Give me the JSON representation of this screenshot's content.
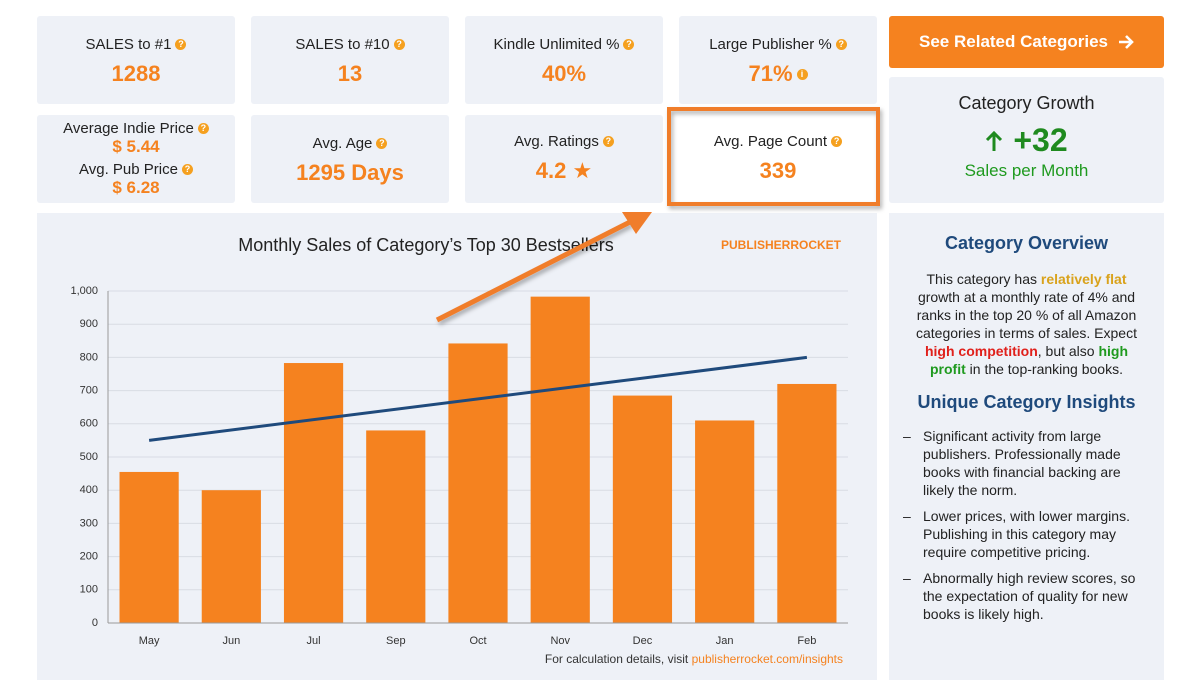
{
  "stats": [
    {
      "label": "SALES to #1",
      "value": "1288"
    },
    {
      "label": "SALES to #10",
      "value": "13"
    },
    {
      "label": "Kindle Unlimited %",
      "value": "40%"
    },
    {
      "label": "Large Publisher %",
      "value": "71%"
    }
  ],
  "price": {
    "indie_label": "Average Indie Price",
    "indie_value": "$ 5.44",
    "pub_label": "Avg. Pub Price",
    "pub_value": "$ 6.28"
  },
  "stats2": [
    {
      "label": "Avg. Age",
      "value": "1295 Days"
    },
    {
      "label": "Avg. Ratings",
      "value": "4.2 ★"
    },
    {
      "label": "Avg. Page Count",
      "value": "339"
    }
  ],
  "button": "See Related Categories",
  "growth": {
    "title": "Category Growth",
    "value": "+32",
    "unit": "Sales per Month"
  },
  "chart_data": {
    "type": "bar",
    "title": "Monthly Sales of Category’s Top 30 Bestsellers",
    "brand": "PUBLISHERROCKET",
    "categories": [
      "May",
      "Jun",
      "Jul",
      "Sep",
      "Oct",
      "Nov",
      "Dec",
      "Jan",
      "Feb"
    ],
    "values": [
      455,
      400,
      783,
      580,
      842,
      983,
      685,
      610,
      720
    ],
    "color": "#f5821f",
    "trend": [
      550,
      800
    ],
    "trend_color": "#1f4a7c",
    "ylim": [
      0,
      1000
    ],
    "yticks": [
      0,
      100,
      200,
      300,
      400,
      500,
      600,
      700,
      800,
      900,
      {
        "value": 1000,
        "label": "1,000"
      }
    ],
    "grid": true,
    "footnote": "For calculation details, visit",
    "footnote_link": "publisherrocket.com/insights"
  },
  "overview": {
    "title": "Category Overview",
    "parts": [
      {
        "text": "This category has "
      },
      {
        "text": "relatively flat",
        "color": "#d9a21b"
      },
      {
        "text": " growth at a monthly rate of 4% and ranks in the top 20 % of all Amazon categories in terms of sales. Expect "
      },
      {
        "text": "high competition",
        "color": "#e0201b"
      },
      {
        "text": ", but also "
      },
      {
        "text": "high profit",
        "color": "#1f9a1f"
      },
      {
        "text": " in the top-ranking books."
      }
    ]
  },
  "insights": {
    "title": "Unique Category Insights",
    "items": [
      "Significant activity from large publishers. Professionally made books with financial backing are likely the norm.",
      "Lower prices, with lower margins. Publishing in this category may require competitive pricing.",
      "Abnormally high review scores, so the expectation of quality for new books is likely high."
    ]
  }
}
